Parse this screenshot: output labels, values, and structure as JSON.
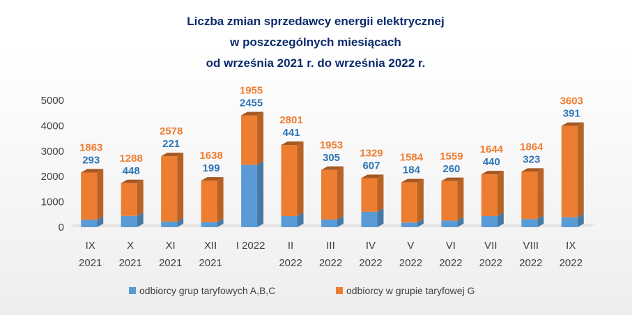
{
  "chart_data": {
    "type": "bar",
    "stacked": true,
    "title_lines": [
      "Liczba zmian sprzedawcy energii elektrycznej",
      "w poszczególnych miesiącach",
      "od września 2021 r. do września 2022 r."
    ],
    "categories": [
      [
        "IX",
        "2021"
      ],
      [
        "X",
        "2021"
      ],
      [
        "XI",
        "2021"
      ],
      [
        "XII",
        "2021"
      ],
      [
        "I 2022",
        ""
      ],
      [
        "II",
        "2022"
      ],
      [
        "III",
        "2022"
      ],
      [
        "IV",
        "2022"
      ],
      [
        "V",
        "2022"
      ],
      [
        "VI",
        "2022"
      ],
      [
        "VII",
        "2022"
      ],
      [
        "VIII",
        "2022"
      ],
      [
        "IX",
        "2022"
      ]
    ],
    "series": [
      {
        "name": "odbiorcy grup taryfowych A,B,C",
        "color": "#5b9bd5",
        "label_color": "#2e75b6",
        "values": [
          293,
          448,
          221,
          199,
          2455,
          441,
          305,
          607,
          184,
          260,
          440,
          323,
          391
        ]
      },
      {
        "name": "odbiorcy w grupie taryfowej G",
        "color": "#ed7d31",
        "label_color": "#ed7d31",
        "values": [
          1863,
          1288,
          2578,
          1638,
          1955,
          2801,
          1953,
          1329,
          1584,
          1559,
          1644,
          1864,
          3603
        ]
      }
    ],
    "yticks": [
      0,
      1000,
      2000,
      3000,
      4000,
      5000
    ],
    "ylim": [
      0,
      5000
    ],
    "grid": false,
    "legend_position": "bottom",
    "xlabel": "",
    "ylabel": ""
  }
}
